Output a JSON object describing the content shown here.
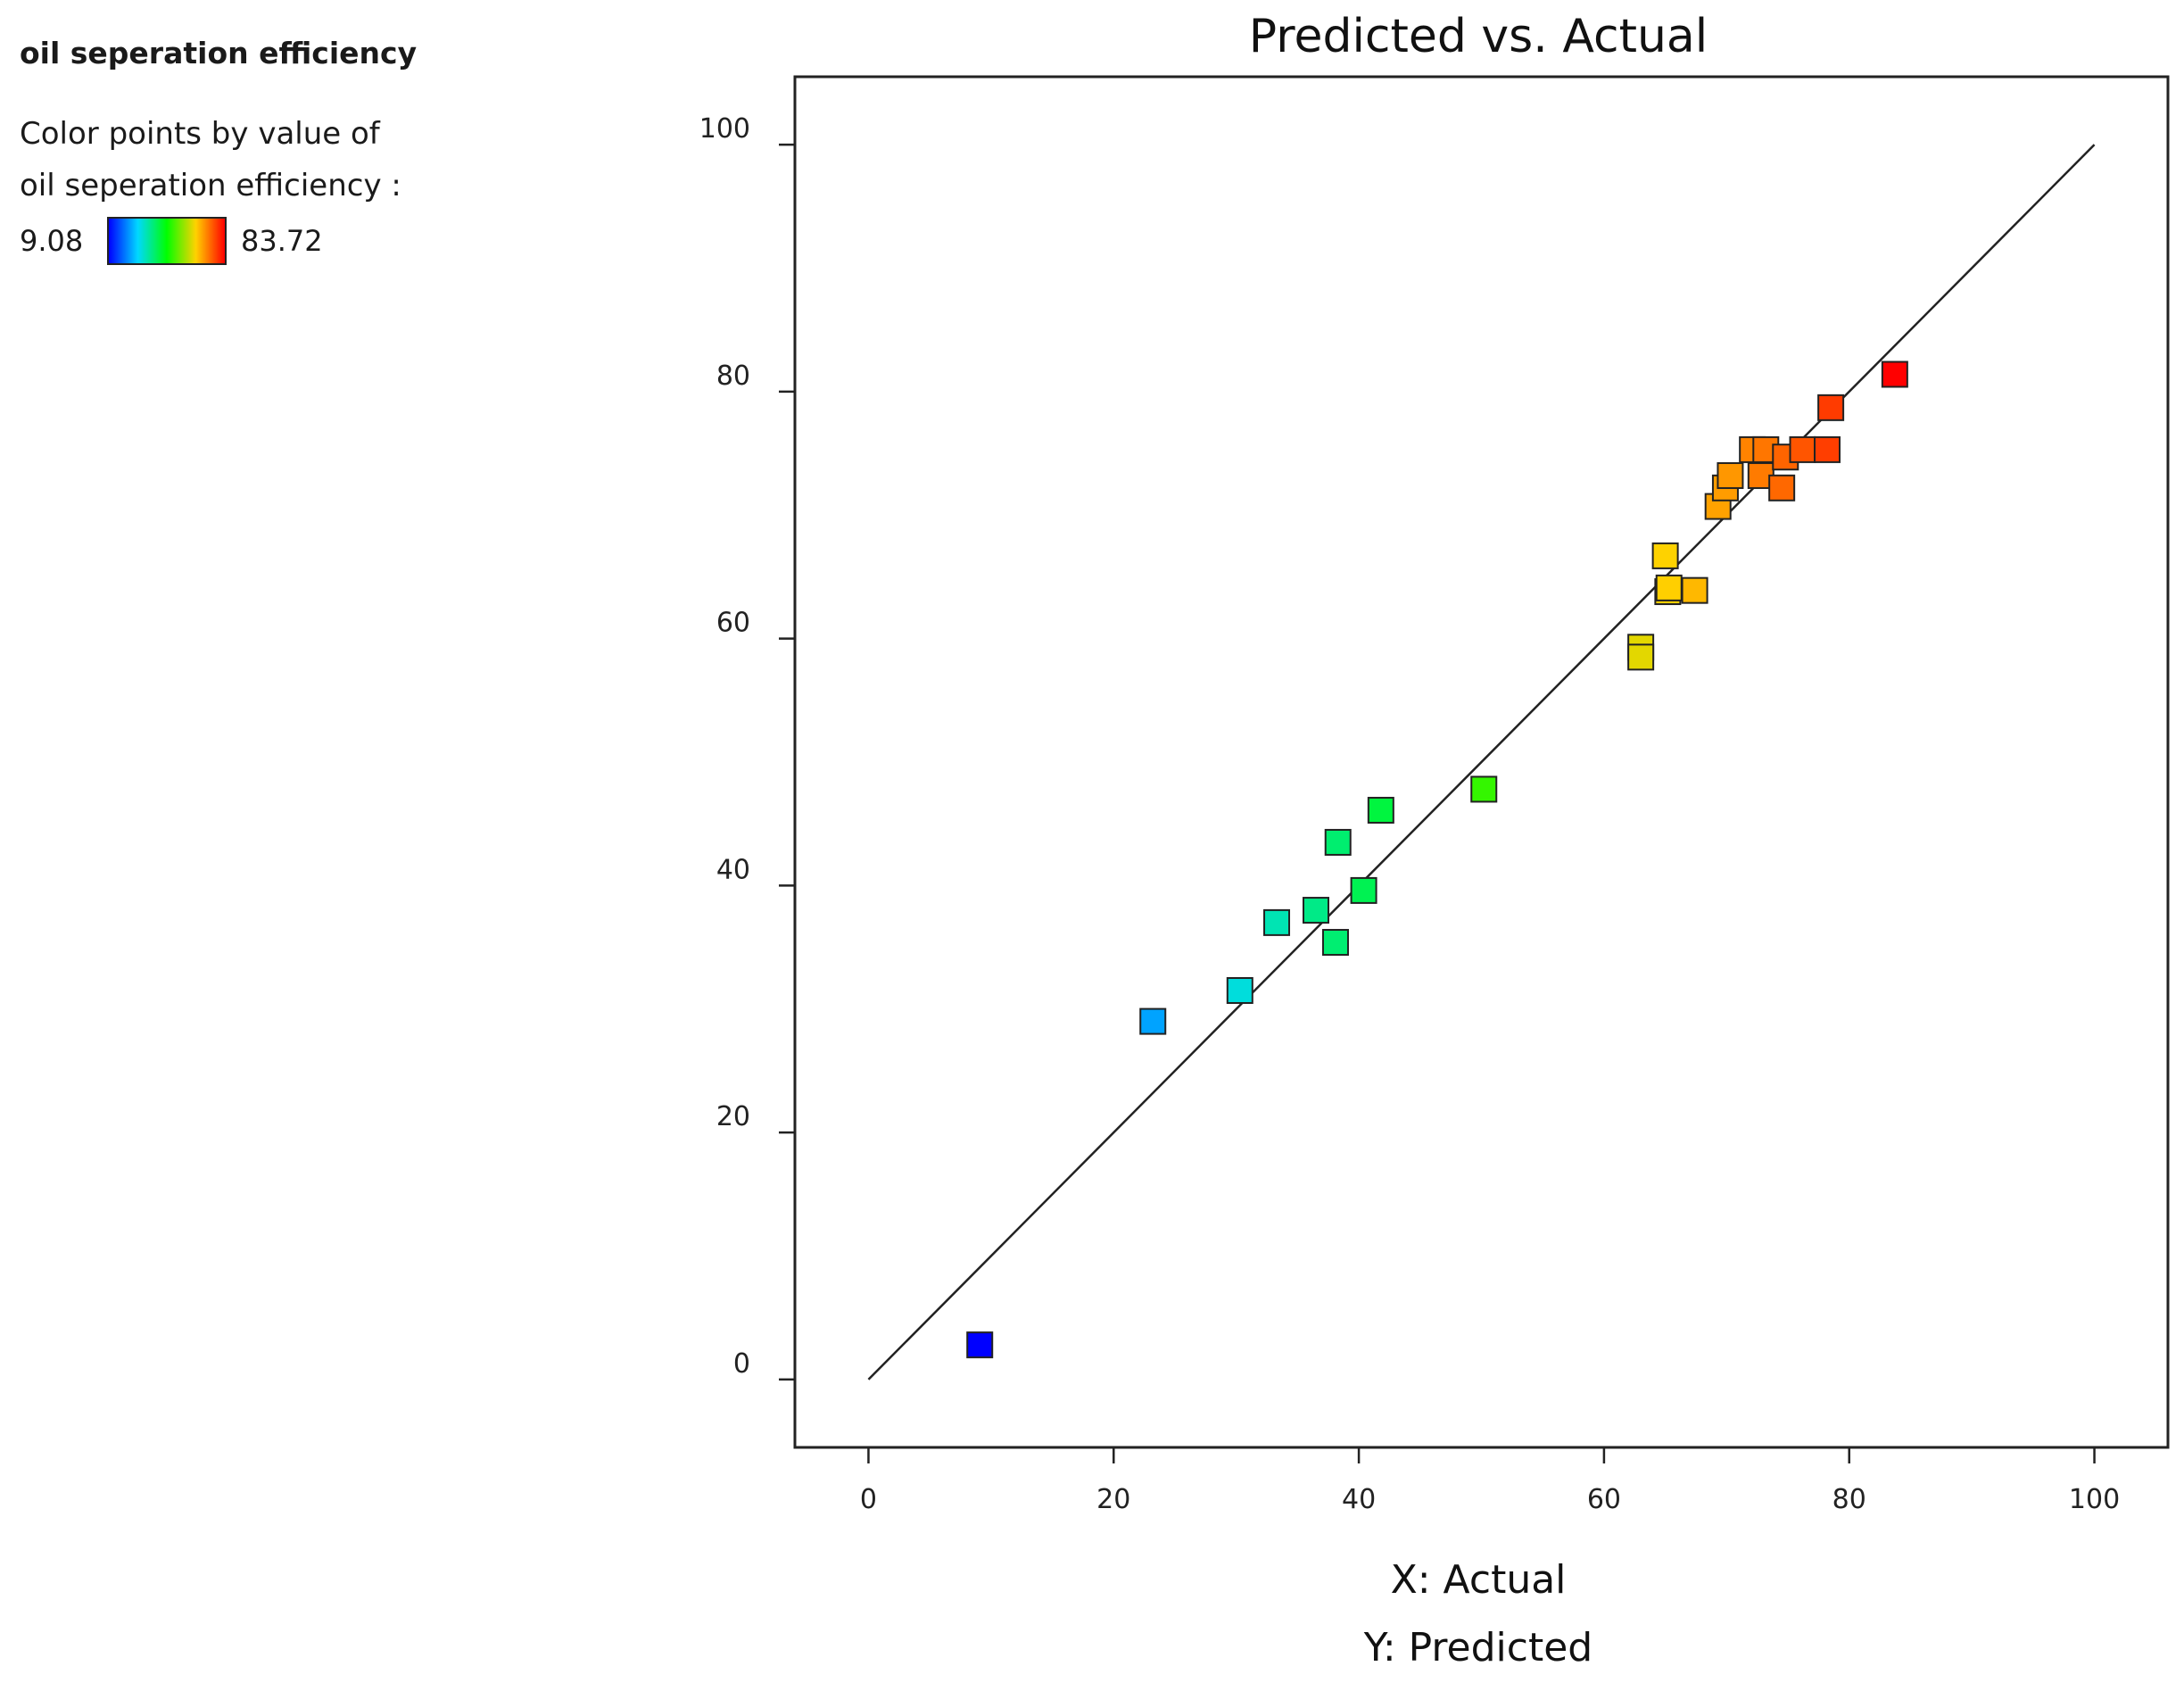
{
  "legend": {
    "title": "oil seperation efficiency",
    "line1": "Color points by value of",
    "line2": "oil seperation efficiency :",
    "min_label": "9.08",
    "max_label": "83.72",
    "min_value": 9.08,
    "max_value": 83.72,
    "gradient_colors": [
      "#0000ff",
      "#00d8ff",
      "#00ff00",
      "#ffd200",
      "#ff0000"
    ]
  },
  "chart_data": {
    "type": "scatter",
    "title": "Predicted vs. Actual",
    "xlabel": "X: Actual",
    "ylabel": "Y: Predicted",
    "xlim": [
      -6,
      106
    ],
    "ylim": [
      -5.5,
      105.5
    ],
    "xticks": [
      0,
      20,
      40,
      60,
      80,
      100
    ],
    "yticks": [
      0,
      20,
      40,
      60,
      80,
      100
    ],
    "reference_line": {
      "x": [
        0,
        100
      ],
      "y": [
        0,
        100
      ]
    },
    "points": [
      {
        "x": 9.08,
        "y": 2.8
      },
      {
        "x": 23.2,
        "y": 29.0
      },
      {
        "x": 30.3,
        "y": 31.5
      },
      {
        "x": 33.3,
        "y": 37.0
      },
      {
        "x": 36.5,
        "y": 38.0
      },
      {
        "x": 38.1,
        "y": 35.4
      },
      {
        "x": 38.3,
        "y": 43.5
      },
      {
        "x": 40.4,
        "y": 39.6
      },
      {
        "x": 41.8,
        "y": 46.1
      },
      {
        "x": 50.2,
        "y": 47.8
      },
      {
        "x": 63.0,
        "y": 59.3
      },
      {
        "x": 63.0,
        "y": 58.5
      },
      {
        "x": 65.0,
        "y": 66.7
      },
      {
        "x": 65.2,
        "y": 63.8
      },
      {
        "x": 65.3,
        "y": 64.1
      },
      {
        "x": 67.4,
        "y": 63.9
      },
      {
        "x": 69.3,
        "y": 70.7
      },
      {
        "x": 69.9,
        "y": 72.2
      },
      {
        "x": 70.3,
        "y": 73.2
      },
      {
        "x": 72.1,
        "y": 75.3
      },
      {
        "x": 72.8,
        "y": 73.2
      },
      {
        "x": 73.2,
        "y": 75.3
      },
      {
        "x": 74.5,
        "y": 72.2
      },
      {
        "x": 74.8,
        "y": 74.7
      },
      {
        "x": 76.2,
        "y": 75.3
      },
      {
        "x": 78.2,
        "y": 75.3
      },
      {
        "x": 78.5,
        "y": 78.7
      },
      {
        "x": 83.72,
        "y": 81.4
      }
    ]
  }
}
